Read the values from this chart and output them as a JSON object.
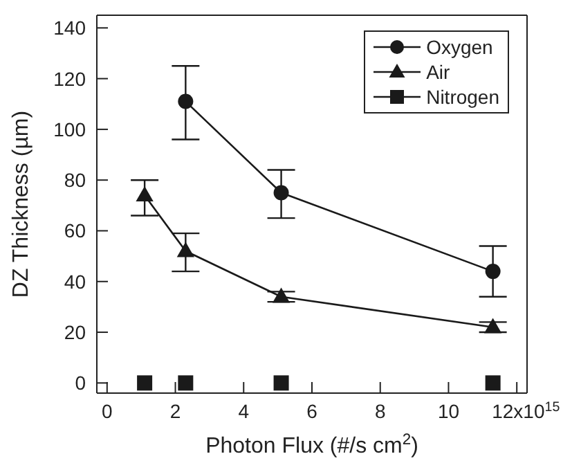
{
  "chart_data": {
    "type": "line",
    "xlabel": "Photon Flux (#/s cm$^{2}$)",
    "ylabel": "DZ Thickness (µm)",
    "xlim": [
      -0.3,
      12.3
    ],
    "xticks": [
      0,
      2,
      4,
      6,
      8,
      10,
      12
    ],
    "annotations": [
      "x10$^{15}$"
    ],
    "ylim": [
      -4,
      145
    ],
    "yticks": [
      0,
      20,
      40,
      60,
      80,
      100,
      120,
      140
    ],
    "legend": "top right",
    "line_style": "solid",
    "series": [
      {
        "name": "Oxygen",
        "color": "#1a1a1a",
        "marker": "circle",
        "x": [
          2.3,
          5.1,
          11.3
        ],
        "values": [
          111,
          75,
          44
        ],
        "errors": [
          [
            96,
            125
          ],
          [
            65,
            84
          ],
          [
            34,
            54
          ]
        ]
      },
      {
        "name": "Air",
        "color": "#1a1a1a",
        "marker": "triangle",
        "x": [
          1.1,
          2.3,
          5.1,
          11.3
        ],
        "values": [
          74,
          52,
          34,
          22
        ],
        "errors": [
          [
            66,
            80
          ],
          [
            44,
            59
          ],
          [
            32,
            36
          ],
          [
            20,
            24
          ]
        ]
      },
      {
        "name": "Nitrogen",
        "color": "#1a1a1a",
        "marker": "square",
        "type": "scatter",
        "x": [
          1.1,
          2.3,
          5.1,
          11.3
        ],
        "values": [
          0,
          0,
          0,
          0
        ]
      }
    ]
  }
}
